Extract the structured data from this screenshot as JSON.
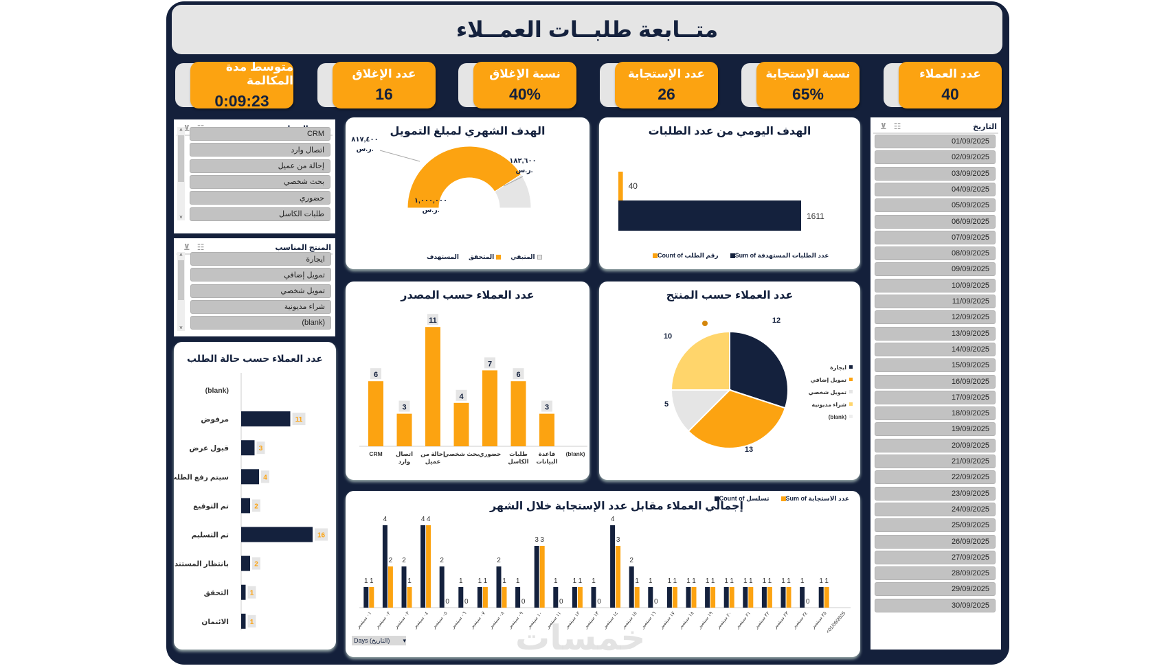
{
  "title": "متــابعة طلبــات العمــلاء",
  "kpis": [
    {
      "label": "عدد العملاء",
      "value": "40"
    },
    {
      "label": "نسبة الإستجابة",
      "value": "65%"
    },
    {
      "label": "عدد الإستجابة",
      "value": "26"
    },
    {
      "label": "نسبة الإغلاق",
      "value": "40%"
    },
    {
      "label": "عدد الإغلاق",
      "value": "16"
    },
    {
      "label": "متوسط مدة المكالمة",
      "value": "0:09:23"
    }
  ],
  "slicer_source": {
    "title": "مصدر العميل",
    "items": [
      "CRM",
      "اتصال وارد",
      "إحالة من عميل",
      "بحث شخصي",
      "حضوري",
      "طلبات الكاسل"
    ]
  },
  "slicer_product": {
    "title": "المنتج المناسب",
    "items": [
      "ايجارة",
      "تمويل إضافي",
      "تمويل شخصي",
      "شراء مديونية",
      "(blank)"
    ]
  },
  "slicer_date": {
    "title": "التاريخ",
    "items": [
      "01/09/2025",
      "02/09/2025",
      "03/09/2025",
      "04/09/2025",
      "05/09/2025",
      "06/09/2025",
      "07/09/2025",
      "08/09/2025",
      "09/09/2025",
      "10/09/2025",
      "11/09/2025",
      "12/09/2025",
      "13/09/2025",
      "14/09/2025",
      "15/09/2025",
      "16/09/2025",
      "17/09/2025",
      "18/09/2025",
      "19/09/2025",
      "20/09/2025",
      "21/09/2025",
      "22/09/2025",
      "23/09/2025",
      "24/09/2025",
      "25/09/2025",
      "26/09/2025",
      "27/09/2025",
      "28/09/2025",
      "29/09/2025",
      "30/09/2025"
    ]
  },
  "watermark": "خمسات",
  "colors": {
    "navy": "#14213d",
    "orange": "#fca311",
    "grey": "#e5e5e5",
    "yellow": "#ffd56b"
  },
  "chart_data": [
    {
      "id": "gauge",
      "type": "pie",
      "title": "الهدف الشهري لمبلغ التمويل",
      "categories": [
        "المتحقق",
        "المتبقي"
      ],
      "values": [
        817400,
        182600
      ],
      "value_labels": [
        "٨١٧,٤٠٠",
        "١٨٢,٦٠٠"
      ],
      "target": 1000000,
      "target_label": "١,٠٠٠,٠٠٠",
      "currency": "ر.س.",
      "legend": [
        "المتبقي",
        "المتحقق",
        "المستهدف"
      ]
    },
    {
      "id": "daily",
      "type": "bar",
      "title": "الهدف اليومي من عدد الطلبات",
      "series": [
        {
          "name": "Count of رقم الطلب",
          "values": [
            40
          ]
        },
        {
          "name": "Sum of عدد الطلبات المستهدفة",
          "values": [
            1611
          ]
        }
      ]
    },
    {
      "id": "status",
      "type": "bar",
      "title": "عدد العملاء حسب حالة الطلب",
      "categories": [
        "(blank)",
        "مرفوض",
        "قبول عرض",
        "سيتم رفع الطلب",
        "تم التوقيع",
        "تم التسليم",
        "بانتظار المستندات",
        "التحقق",
        "الائتمان"
      ],
      "values": [
        null,
        11,
        3,
        4,
        2,
        16,
        2,
        1,
        1
      ]
    },
    {
      "id": "source",
      "type": "bar",
      "title": "عدد العملاء حسب المصدر",
      "categories": [
        "CRM",
        "اتصال وارد",
        "إحالة من عميل",
        "بحث شخصي",
        "حضوري",
        "طلبات الكاسل",
        "قاعدة البيانات",
        "(blank)"
      ],
      "values": [
        6,
        3,
        11,
        4,
        7,
        6,
        3,
        null
      ]
    },
    {
      "id": "product",
      "type": "pie",
      "title": "عدد العملاء حسب المنتج",
      "categories": [
        "ايجارة",
        "تمويل إضافي",
        "تمويل شخصي",
        "شراء مديونية",
        "(blank)"
      ],
      "values": [
        12,
        13,
        5,
        10,
        0
      ]
    },
    {
      "id": "monthly",
      "type": "bar",
      "title": "إجمالي العملاء مقابل عدد الإستجابة خلال الشهر",
      "categories": [
        "٠١ سبتمبر",
        "٠٢ سبتمبر",
        "٠٣ سبتمبر",
        "٠٤ سبتمبر",
        "٠٥ سبتمبر",
        "٠٦ سبتمبر",
        "٠٧ سبتمبر",
        "٠٨ سبتمبر",
        "٠٩ سبتمبر",
        "١٠ سبتمبر",
        "١١ سبتمبر",
        "١٢ سبتمبر",
        "١٣ سبتمبر",
        "١٤ سبتمبر",
        "١٥ سبتمبر",
        "١٦ سبتمبر",
        "١٧ سبتمبر",
        "١٨ سبتمبر",
        "١٩ سبتمبر",
        "٢٠ سبتمبر",
        "٢١ سبتمبر",
        "٢٢ سبتمبر",
        "٢٣ سبتمبر",
        "٢٤ سبتمبر",
        "٢٥ سبتمبر",
        "<01/09/2025"
      ],
      "series": [
        {
          "name": "Count of تسلسل",
          "values": [
            1,
            4,
            2,
            4,
            2,
            1,
            1,
            2,
            1,
            3,
            1,
            1,
            1,
            4,
            2,
            1,
            1,
            1,
            1,
            1,
            1,
            1,
            1,
            1,
            1,
            null
          ]
        },
        {
          "name": "Sum of عدد الاستجابة",
          "values": [
            1,
            2,
            1,
            4,
            0,
            0,
            1,
            1,
            0,
            3,
            0,
            1,
            0,
            3,
            1,
            0,
            1,
            1,
            1,
            1,
            1,
            1,
            1,
            0,
            1,
            null
          ]
        }
      ],
      "ylim": [
        0,
        4
      ],
      "field_button": "Days (التاريخ)"
    }
  ]
}
